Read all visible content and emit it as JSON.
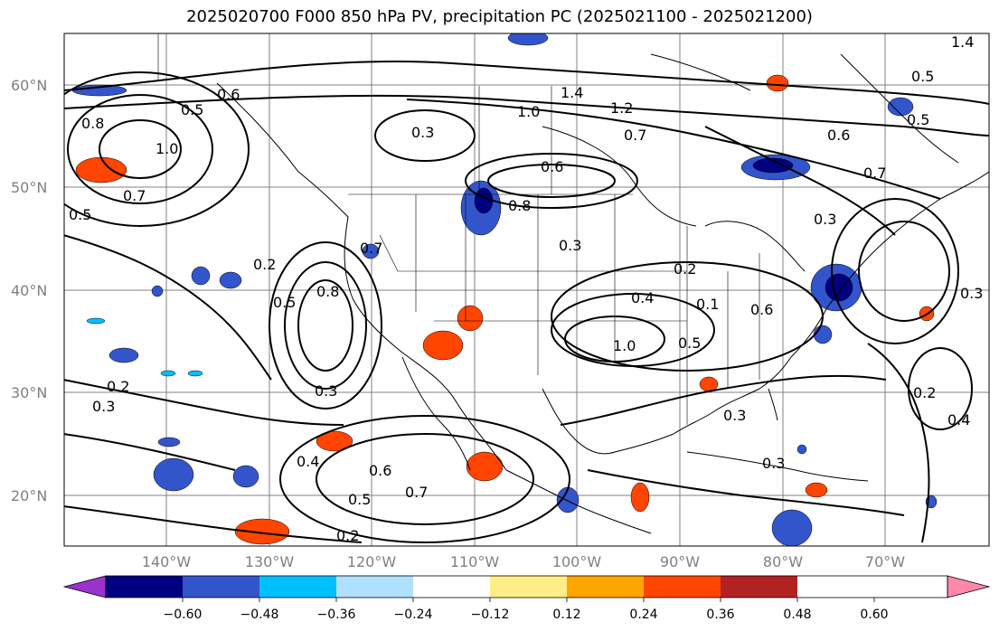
{
  "title": "2025020700 F000 850 hPa PV, precipitation PC (2025021100 - 2025021200)",
  "lat_labels": [
    "60°N",
    "50°N",
    "40°N",
    "30°N",
    "20°N"
  ],
  "lon_labels": [
    "140°W",
    "130°W",
    "120°W",
    "110°W",
    "100°W",
    "90°W",
    "80°W",
    "70°W"
  ],
  "colorbar": {
    "ticks": [
      "−0.60",
      "−0.48",
      "−0.36",
      "−0.24",
      "−0.12",
      "0.12",
      "0.24",
      "0.36",
      "0.48",
      "0.60"
    ],
    "colors": [
      "#9933cc",
      "#000080",
      "#3355cc",
      "#00bfff",
      "#b0e0ff",
      "#ffffff",
      "#ffee88",
      "#ffa500",
      "#ff4500",
      "#b22222",
      "#ff88aa"
    ]
  },
  "contour_labels": [
    "0.8",
    "1.0",
    "0.7",
    "0.5",
    "0.6",
    "0.3",
    "1.4",
    "1.2",
    "1.0",
    "0.7",
    "0.6",
    "0.8",
    "0.3",
    "0.2",
    "0.6",
    "0.7",
    "0.5",
    "0.8",
    "0.5",
    "0.3",
    "0.2",
    "0.3",
    "0.2",
    "0.4",
    "0.6",
    "0.5",
    "0.7",
    "0.2",
    "0.1",
    "0.4",
    "1.0",
    "0.5",
    "0.3",
    "0.3",
    "0.2",
    "0.4",
    "0.3",
    "0.5",
    "0.6",
    "0.7",
    "1.4",
    "0.5",
    "0.3"
  ]
}
